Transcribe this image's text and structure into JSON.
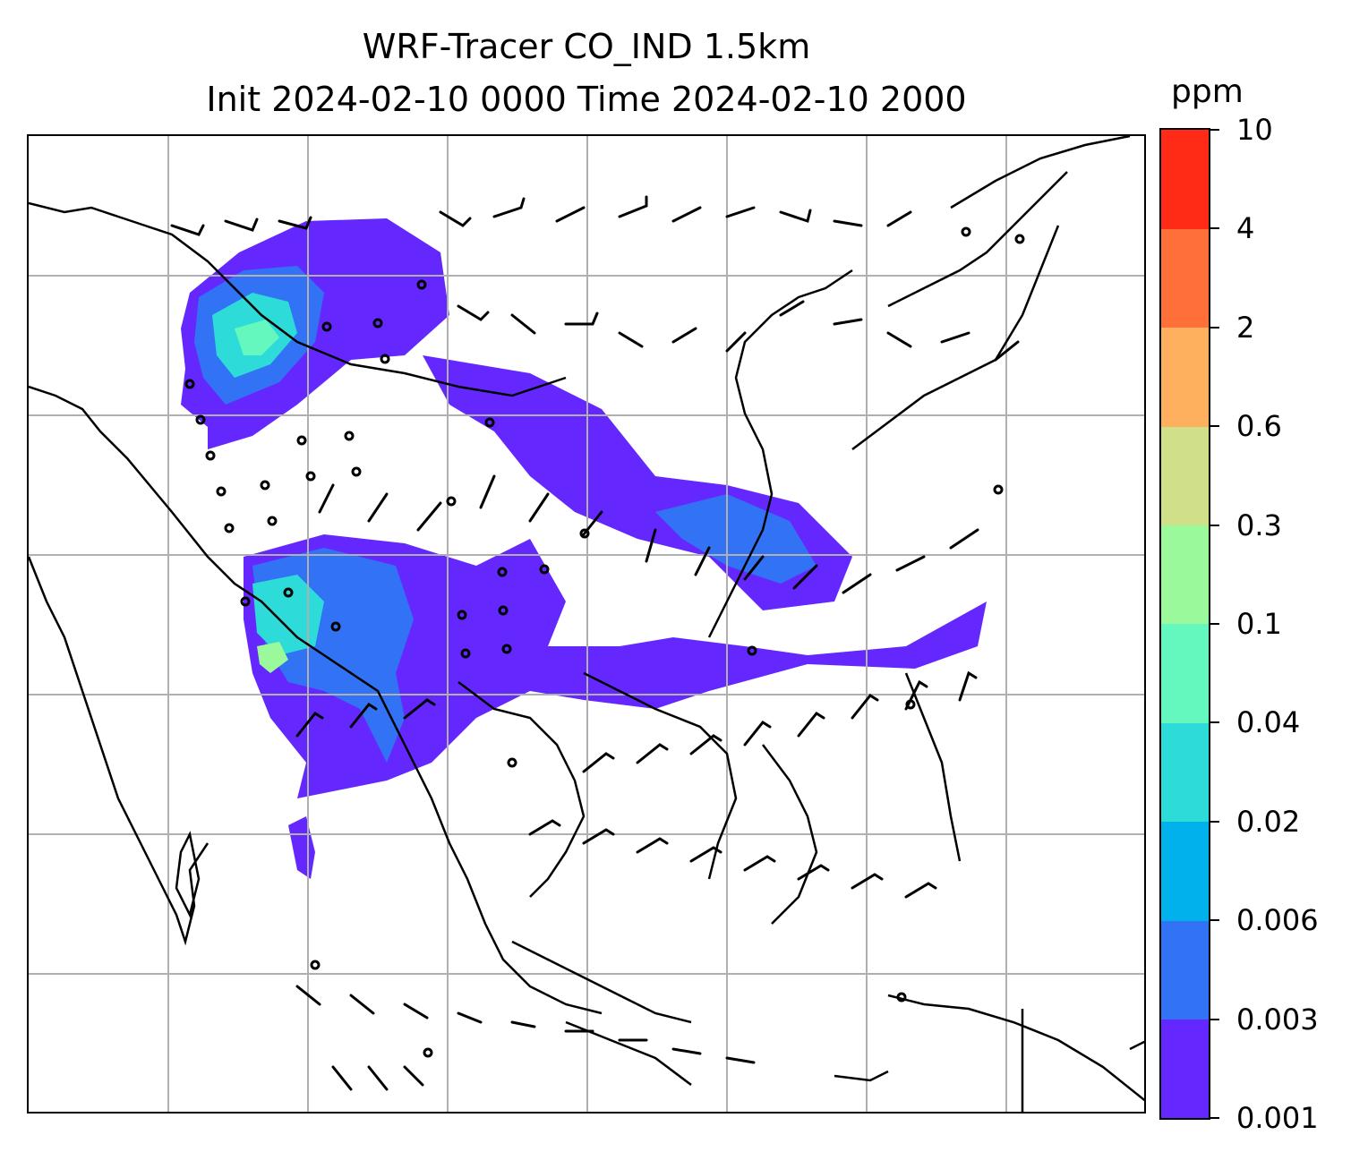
{
  "title_line1": "WRF-Tracer CO_IND 1.5km",
  "title_line2": "Init 2024-02-10 0000 Time 2024-02-10 2000",
  "colorbar": {
    "unit": "ppm",
    "tick_labels": [
      "0.001",
      "0.003",
      "0.006",
      "0.02",
      "0.04",
      "0.1",
      "0.3",
      "0.6",
      "2",
      "4",
      "10"
    ],
    "colors": [
      "#6428FF",
      "#3273F5",
      "#00B1EC",
      "#2DDCD8",
      "#64F8BE",
      "#9AF99B",
      "#D0E088",
      "#FFB05F",
      "#FF6F3A",
      "#FF2B17"
    ]
  },
  "map": {
    "gridlines": true,
    "colors": {
      "land_outline": "#000000",
      "grid": "#b0b0b0"
    }
  }
}
